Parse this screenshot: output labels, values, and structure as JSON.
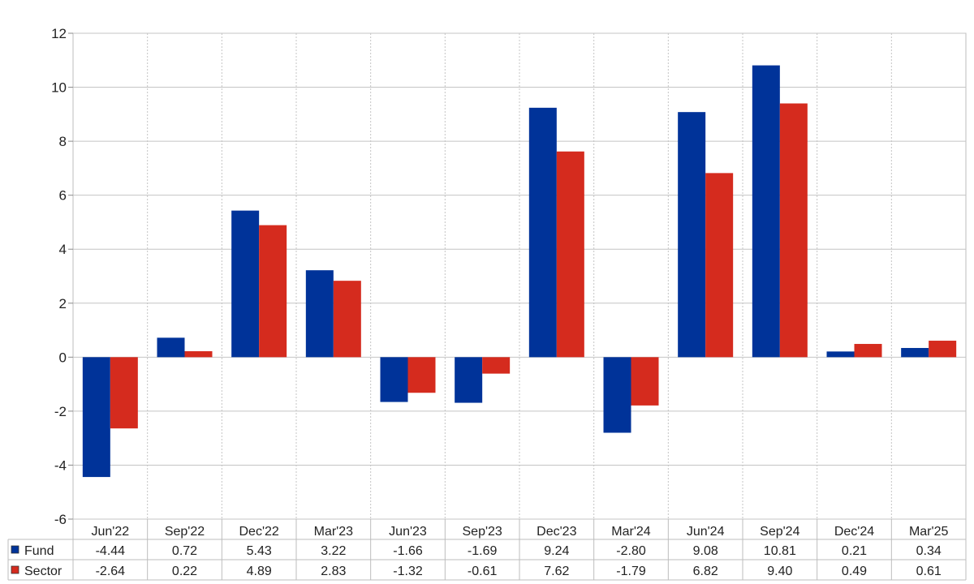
{
  "chart_data": {
    "type": "bar",
    "categories": [
      "Jun'22",
      "Sep'22",
      "Dec'22",
      "Mar'23",
      "Jun'23",
      "Sep'23",
      "Dec'23",
      "Mar'24",
      "Jun'24",
      "Sep'24",
      "Dec'24",
      "Mar'25"
    ],
    "series": [
      {
        "name": "Fund",
        "color": "#003399",
        "values": [
          -4.44,
          0.72,
          5.43,
          3.22,
          -1.66,
          -1.69,
          9.24,
          -2.8,
          9.08,
          10.81,
          0.21,
          0.34
        ]
      },
      {
        "name": "Sector",
        "color": "#d52b1e",
        "values": [
          -2.64,
          0.22,
          4.89,
          2.83,
          -1.32,
          -0.61,
          7.62,
          -1.79,
          6.82,
          9.4,
          0.49,
          0.61
        ]
      }
    ],
    "table_values": {
      "Fund": [
        "-4.44",
        "0.72",
        "5.43",
        "3.22",
        "-1.66",
        "-1.69",
        "9.24",
        "-2.80",
        "9.08",
        "10.81",
        "0.21",
        "0.34"
      ],
      "Sector": [
        "-2.64",
        "0.22",
        "4.89",
        "2.83",
        "-1.32",
        "-0.61",
        "7.62",
        "-1.79",
        "6.82",
        "9.40",
        "0.49",
        "0.61"
      ]
    },
    "ylim": [
      -6,
      12
    ],
    "yticks": [
      -6,
      -4,
      -2,
      0,
      2,
      4,
      6,
      8,
      10,
      12
    ],
    "title": "",
    "xlabel": "",
    "ylabel": "",
    "grid": true,
    "legend": "data table below chart",
    "negative_value_color": "#e8141b"
  }
}
